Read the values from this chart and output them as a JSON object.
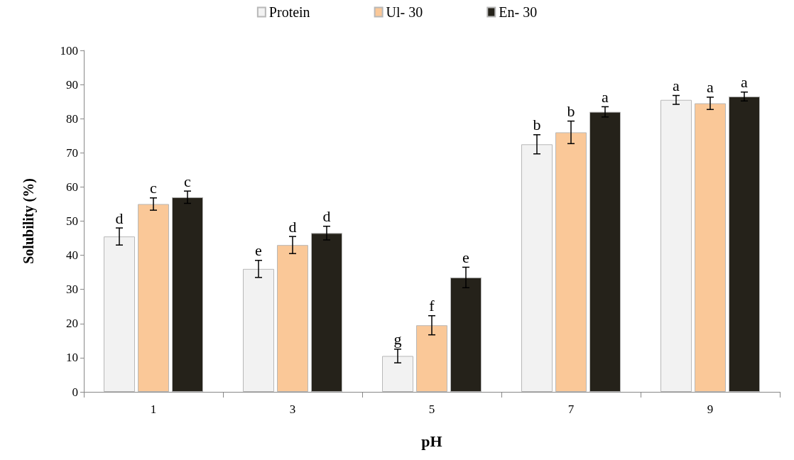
{
  "chart_data": {
    "type": "bar",
    "xlabel": "pH",
    "ylabel": "Solubility (%)",
    "categories": [
      "1",
      "3",
      "5",
      "7",
      "9"
    ],
    "series": [
      {
        "name": "Protein",
        "color": "#f2f2f2",
        "values": [
          45.5,
          36,
          10.5,
          72.5,
          85.5
        ],
        "errors": [
          2.5,
          2.5,
          2,
          2.8,
          1.3
        ],
        "value_labels": [
          "d",
          "e",
          "g",
          "b",
          "a"
        ]
      },
      {
        "name": "Ul- 30",
        "color": "#fac898",
        "values": [
          55,
          43,
          19.5,
          76,
          84.5
        ],
        "errors": [
          1.8,
          2.5,
          2.8,
          3.3,
          1.8
        ],
        "value_labels": [
          "c",
          "d",
          "f",
          "b",
          "a"
        ]
      },
      {
        "name": "En- 30",
        "color": "#25221a",
        "values": [
          57,
          46.5,
          33.5,
          82,
          86.5
        ],
        "errors": [
          1.8,
          2,
          3,
          1.5,
          1.3
        ],
        "value_labels": [
          "c",
          "d",
          "e",
          "a",
          "a"
        ]
      }
    ],
    "ylim": [
      0,
      100
    ],
    "yticks": [
      0,
      10,
      20,
      30,
      40,
      50,
      60,
      70,
      80,
      90,
      100
    ],
    "grid": false,
    "legend": "top"
  }
}
